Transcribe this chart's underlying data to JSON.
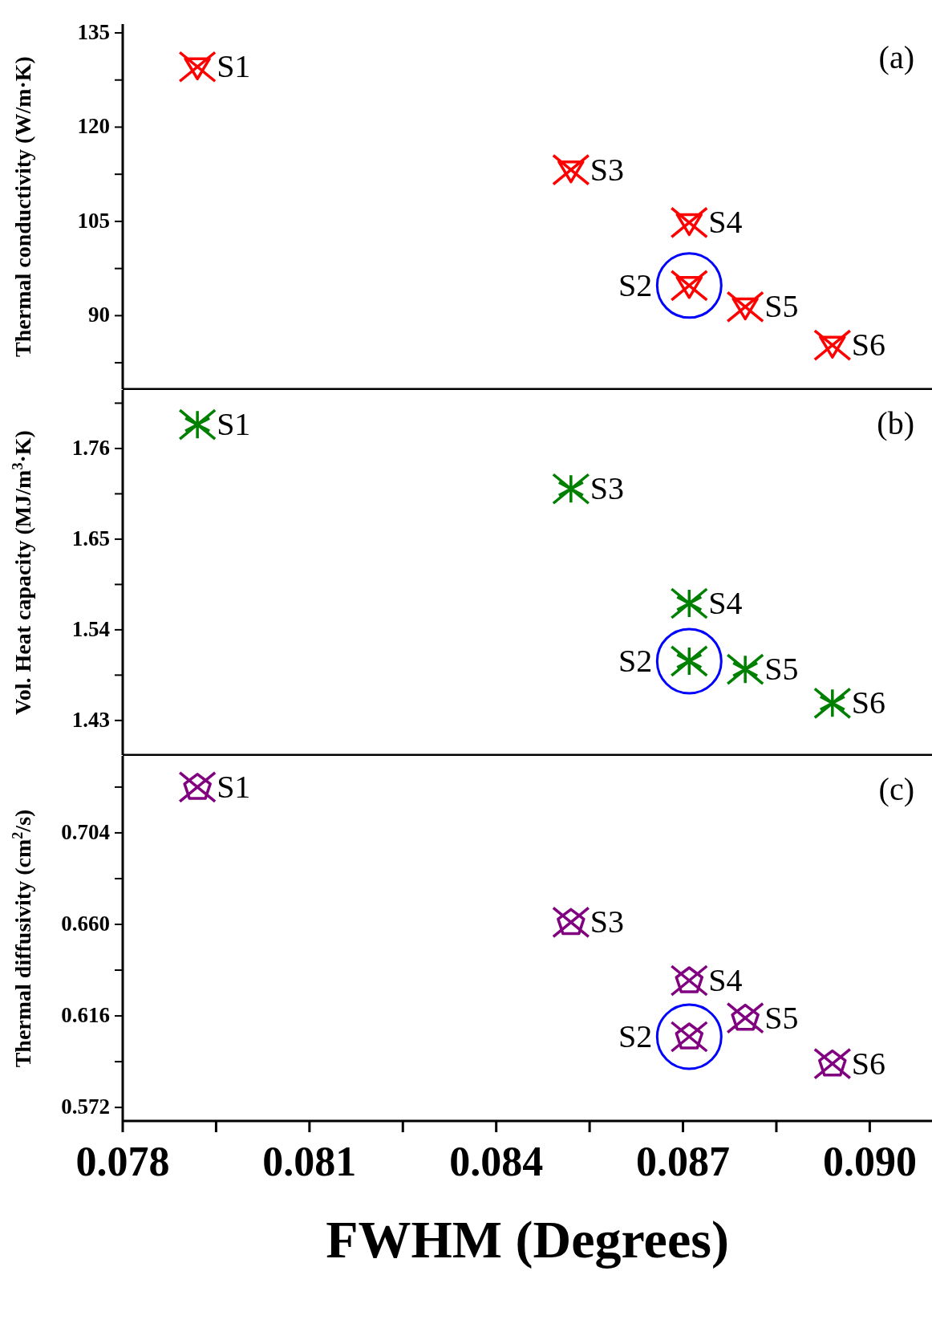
{
  "chart_data": [
    {
      "type": "scatter",
      "ylabel": "Thermal conductivity (W/m·K)",
      "x": [
        0.0792,
        0.0871,
        0.0852,
        0.0871,
        0.088,
        0.0894
      ],
      "series": [
        {
          "color": "#ff0000",
          "values": [
            129.6,
            94.8,
            113.2,
            104.8,
            91.4,
            85.3
          ]
        }
      ],
      "xlim": [
        0.078,
        0.091
      ],
      "ylim": [
        78.3,
        136.4
      ],
      "yticks": [
        90,
        105,
        120,
        135,
        {
          "value": 82.5,
          "label": null
        },
        {
          "value": 97.5,
          "label": null
        },
        {
          "value": 112.5,
          "label": null
        },
        {
          "value": 127.5,
          "label": null
        }
      ],
      "tick_labels": "y",
      "marker": "cross",
      "grid": false,
      "legend": false,
      "annotations": [
        "(a)",
        {
          "text": "S1",
          "x": 0.0792,
          "y": 129.6
        },
        {
          "text": "S2",
          "x": 0.0871,
          "y": 94.8
        },
        {
          "text": "S3",
          "x": 0.0852,
          "y": 113.2
        },
        {
          "text": "S4",
          "x": 0.0871,
          "y": 104.8
        },
        {
          "text": "S5",
          "x": 0.088,
          "y": 91.4
        },
        {
          "text": "S6",
          "x": 0.0894,
          "y": 85.3
        }
      ]
    },
    {
      "type": "scatter",
      "ylabel": "Vol. Heat capacity (MJ/m$^{3}$·K)",
      "x": [
        0.0792,
        0.0871,
        0.0852,
        0.0871,
        0.088,
        0.0894
      ],
      "series": [
        {
          "color": "#008000",
          "values": [
            1.789,
            1.502,
            1.711,
            1.572,
            1.492,
            1.451
          ]
        }
      ],
      "xlim": [
        0.078,
        0.091
      ],
      "ylim": [
        1.388,
        1.831
      ],
      "yticks": [
        1.43,
        1.54,
        1.65,
        1.76,
        {
          "value": 1.485,
          "label": null
        },
        {
          "value": 1.595,
          "label": null
        },
        {
          "value": 1.705,
          "label": null
        },
        {
          "value": 1.815,
          "label": null
        }
      ],
      "tick_labels": "y",
      "marker": "cross",
      "grid": false,
      "legend": false,
      "annotations": [
        "(b)",
        {
          "text": "S1",
          "x": 0.0792,
          "y": 1.789
        },
        {
          "text": "S2",
          "x": 0.0871,
          "y": 1.502
        },
        {
          "text": "S3",
          "x": 0.0852,
          "y": 1.711
        },
        {
          "text": "S4",
          "x": 0.0871,
          "y": 1.572
        },
        {
          "text": "S5",
          "x": 0.088,
          "y": 1.492
        },
        {
          "text": "S6",
          "x": 0.0894,
          "y": 1.451
        }
      ]
    },
    {
      "type": "scatter",
      "ylabel": "Thermal diffusivity (cm$^{2}$/s)",
      "xlabel": "FWHM (Degrees)",
      "x": [
        0.0792,
        0.0871,
        0.0852,
        0.0871,
        0.088,
        0.0894
      ],
      "series": [
        {
          "color": "#800080",
          "values": [
            0.726,
            0.606,
            0.661,
            0.633,
            0.615,
            0.593
          ]
        }
      ],
      "xlim": [
        0.078,
        0.091
      ],
      "ylim": [
        0.5655,
        0.741
      ],
      "xticks": [
        0.078,
        {
          "value": 0.0795,
          "label": null
        },
        0.081,
        {
          "value": 0.0825,
          "label": null
        },
        0.084,
        {
          "value": 0.0855,
          "label": null
        },
        0.087,
        {
          "value": 0.0885,
          "label": null
        },
        {
          "value": 0.09,
          "label": "0.090"
        }
      ],
      "yticks": [
        0.572,
        0.616,
        "0.660",
        0.704,
        {
          "value": 0.594,
          "label": null
        },
        {
          "value": 0.638,
          "label": null
        },
        {
          "value": 0.682,
          "label": null
        },
        {
          "value": 0.726,
          "label": null
        }
      ],
      "marker": "cross",
      "grid": false,
      "legend": false,
      "annotations": [
        "(c)",
        {
          "text": "S1",
          "x": 0.0792,
          "y": 0.726
        },
        {
          "text": "S2",
          "x": 0.0871,
          "y": 0.606
        },
        {
          "text": "S3",
          "x": 0.0852,
          "y": 0.661
        },
        {
          "text": "S4",
          "x": 0.0871,
          "y": 0.633
        },
        {
          "text": "S5",
          "x": 0.088,
          "y": 0.615
        },
        {
          "text": "S6",
          "x": 0.0894,
          "y": 0.593
        }
      ]
    }
  ]
}
